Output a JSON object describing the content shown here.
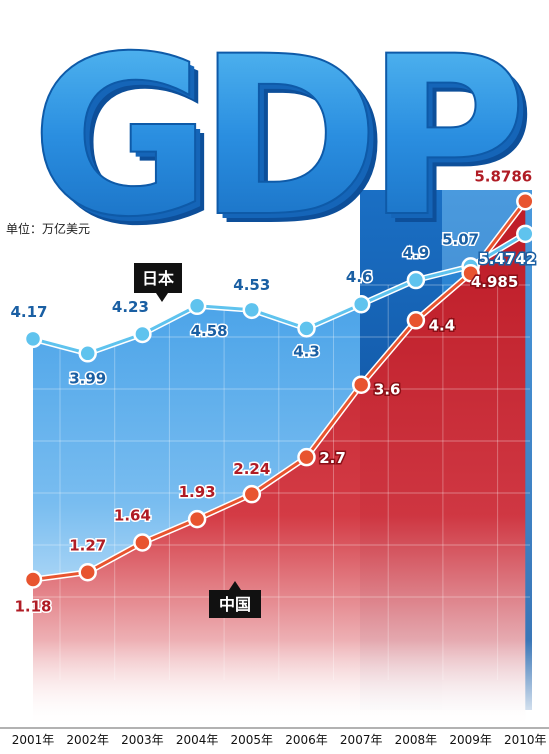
{
  "chart_data": {
    "type": "line",
    "title": "GDP",
    "unit_label": "单位：万亿美元",
    "categories": [
      "2001年",
      "2002年",
      "2003年",
      "2004年",
      "2005年",
      "2006年",
      "2007年",
      "2008年",
      "2009年",
      "2010年"
    ],
    "series": [
      {
        "name": "日本",
        "values": [
          4.17,
          3.99,
          4.23,
          4.58,
          4.53,
          4.3,
          4.6,
          4.9,
          5.07,
          5.4742
        ],
        "labels": [
          "4.17",
          "3.99",
          "4.23",
          "4.58",
          "4.53",
          "4.3",
          "4.6",
          "4.9",
          "5.07",
          "5.4742"
        ],
        "color": "#2f8fd8",
        "marker_color": "#5fc3ee",
        "label_color": "#1a5fa3"
      },
      {
        "name": "中国",
        "values": [
          1.18,
          1.27,
          1.64,
          1.93,
          2.24,
          2.7,
          3.6,
          4.4,
          4.985,
          5.8786
        ],
        "labels": [
          "1.18",
          "1.27",
          "1.64",
          "1.93",
          "2.24",
          "2.7",
          "3.6",
          "4.4",
          "4.985",
          "5.8786"
        ],
        "color": "#d42a2a",
        "marker_color": "#e8542f",
        "label_color": "#b01c25"
      }
    ],
    "xlabel": "",
    "ylabel": "",
    "grid": true,
    "legend": "callouts"
  }
}
